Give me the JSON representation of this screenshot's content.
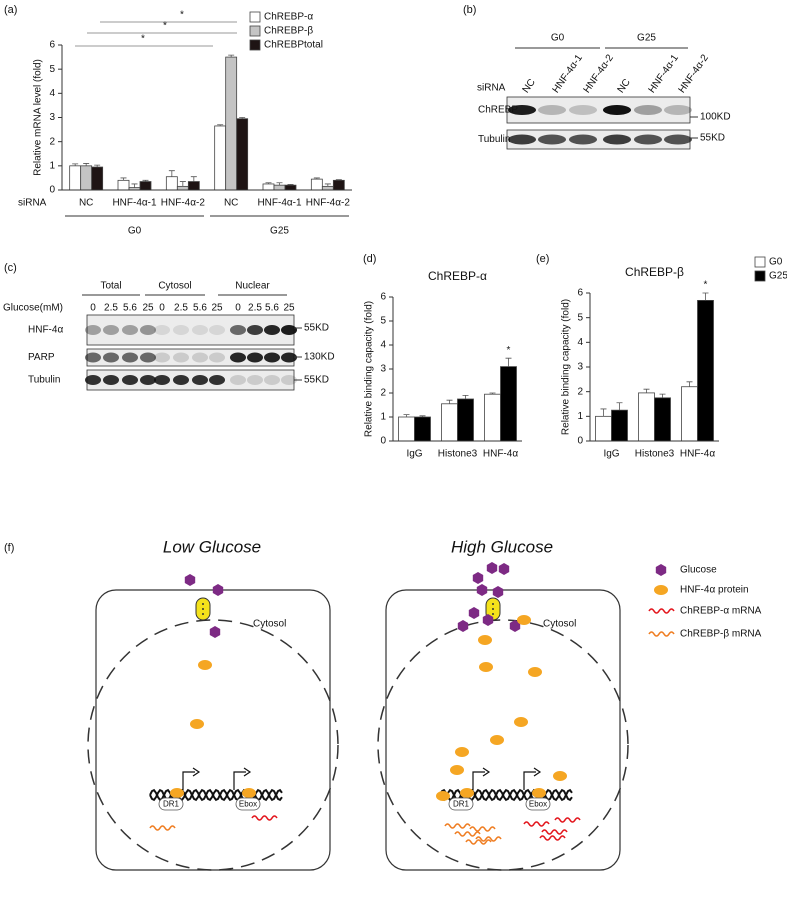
{
  "chart_data": [
    {
      "type": "bar",
      "panel": "(a)",
      "y_label": "Relative mRNA level (fold)",
      "x_label": "siRNA",
      "categories": [
        "NC",
        "HNF-4α-1",
        "HNF-4α-2",
        "NC",
        "HNF-4α-1",
        "HNF-4α-2"
      ],
      "groups": [
        "G0",
        "G25"
      ],
      "series": [
        {
          "name": "ChREBP-α",
          "color": "#ffffff",
          "values": [
            1.0,
            0.4,
            0.55,
            2.65,
            0.25,
            0.45
          ],
          "errors": [
            0.08,
            0.1,
            0.25,
            0.05,
            0.05,
            0.05
          ]
        },
        {
          "name": "ChREBP-β",
          "color": "#c4c4c4",
          "values": [
            1.0,
            0.1,
            0.15,
            5.5,
            0.2,
            0.15
          ],
          "errors": [
            0.1,
            0.15,
            0.2,
            0.08,
            0.1,
            0.1
          ]
        },
        {
          "name": "ChREBPtotal",
          "color": "#1e1414",
          "values": [
            0.95,
            0.35,
            0.35,
            2.95,
            0.2,
            0.4
          ],
          "errors": [
            0.08,
            0.05,
            0.2,
            0.05,
            0.03,
            0.03
          ]
        }
      ],
      "ylim": [
        0,
        6
      ],
      "yticks": [
        0,
        1,
        2,
        3,
        4,
        5,
        6
      ],
      "legend": "upper right",
      "annotations": [
        "*",
        "*",
        "*"
      ]
    },
    {
      "type": "bar",
      "panel": "(d)",
      "title": "ChREBP-α",
      "y_label": "Relative binding capacity (fold)",
      "categories": [
        "IgG",
        "Histone3",
        "HNF-4α"
      ],
      "series": [
        {
          "color": "#ffffff",
          "values": [
            1.0,
            1.55,
            1.95
          ],
          "errors": [
            0.1,
            0.15,
            0.05
          ]
        },
        {
          "color": "#000000",
          "values": [
            1.0,
            1.75,
            3.1
          ],
          "errors": [
            0.05,
            0.15,
            0.35
          ]
        }
      ],
      "ylim": [
        0,
        6
      ],
      "yticks": [
        0,
        1,
        2,
        3,
        4,
        5,
        6
      ],
      "annotations": [
        "*"
      ]
    },
    {
      "type": "bar",
      "panel": "(e)",
      "title": "ChREBP-β",
      "y_label": "Relative binding capacity (fold)",
      "categories": [
        "IgG",
        "Histone3",
        "HNF-4α"
      ],
      "series": [
        {
          "name": "G0",
          "color": "#ffffff",
          "values": [
            1.0,
            1.95,
            2.2
          ],
          "errors": [
            0.3,
            0.15,
            0.2
          ]
        },
        {
          "name": "G25",
          "color": "#000000",
          "values": [
            1.25,
            1.75,
            5.7
          ],
          "errors": [
            0.3,
            0.15,
            0.3
          ]
        }
      ],
      "ylim": [
        0,
        6
      ],
      "yticks": [
        0,
        1,
        2,
        3,
        4,
        5,
        6
      ],
      "legend": "outside right",
      "annotations": [
        "*"
      ]
    }
  ],
  "blots": [
    {
      "panel": "(b)",
      "groups": [
        "G0",
        "G25"
      ],
      "lane_title": "siRNA",
      "lanes": [
        "NC",
        "HNF-4α-1",
        "HNF-4α-2",
        "NC",
        "HNF-4α-1",
        "HNF-4α-2"
      ],
      "rows": [
        "ChREBP",
        "Tubulin"
      ],
      "markers": [
        "100KD",
        "55KD"
      ]
    },
    {
      "panel": "(c)",
      "groups": [
        "Total",
        "Cytosol",
        "Nuclear"
      ],
      "lane_title": "Glucose(mM)",
      "lanes": [
        "0",
        "2.5",
        "5.6",
        "25",
        "0",
        "2.5",
        "5.6",
        "25",
        "0",
        "2.5",
        "5.6",
        "25"
      ],
      "rows": [
        "HNF-4α",
        "PARP",
        "Tubulin"
      ],
      "markers": [
        "55KD",
        "130KD",
        "55KD"
      ]
    }
  ],
  "diagram": {
    "panel": "(f)",
    "panels": [
      {
        "title": "Low Glucose",
        "compartment": "Cytosol",
        "sites": [
          "DR1",
          "Ebox"
        ]
      },
      {
        "title": "High Glucose",
        "compartment": "Cytosol",
        "sites": [
          "DR1",
          "Ebox"
        ]
      }
    ],
    "legend": [
      "Glucose",
      "HNF-4α protein",
      "ChREBP-α mRNA",
      "ChREBP-β mRNA"
    ]
  }
}
